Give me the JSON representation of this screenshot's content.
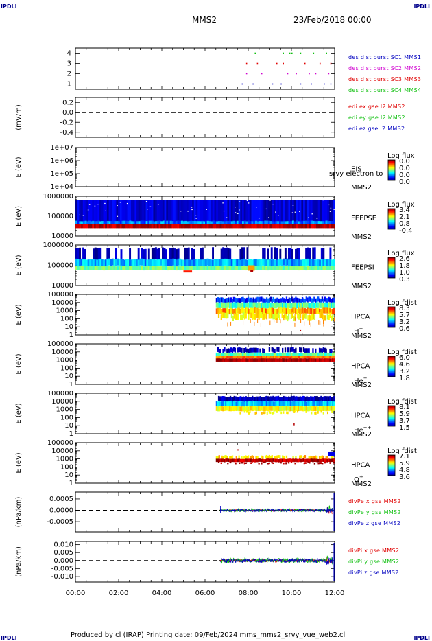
{
  "corner_label": "IPDLI",
  "header": {
    "spacecraft": "MMS2",
    "datetime": "23/Feb/2018 00:00"
  },
  "footer": {
    "text": "Produced by cl (IRAP)   Printing date: 09/Feb/2024   mms_mms2_srvy_vue_web2.cl"
  },
  "time_axis": {
    "labels": [
      "00:00",
      "02:00",
      "04:00",
      "06:00",
      "08:00",
      "10:00",
      "12:00"
    ]
  },
  "overlap_text": "srvy electron to",
  "colors": {
    "red": "#e00000",
    "green": "#10c010",
    "blue": "#0000c0",
    "magenta": "#d000d0"
  },
  "chart_data": [
    {
      "type": "scatter",
      "panel": "burst",
      "yticks": [
        "4",
        "3",
        "2",
        "1"
      ],
      "ylim": [
        0.5,
        4.5
      ],
      "legend": [
        {
          "text": "des dist burst SC1 MMS1",
          "color": "#0000c0"
        },
        {
          "text": "des dist burst SC2 MMS2",
          "color": "#d000d0"
        },
        {
          "text": "des dist burst SC3 MMS3",
          "color": "#e00000"
        },
        {
          "text": "des dist burst SC4 MMS4",
          "color": "#10c010"
        }
      ]
    },
    {
      "type": "line",
      "panel": "efield",
      "ylabel": "(mV/m)",
      "yticks": [
        "0.2",
        "0.0",
        "-0.2",
        "-0.4"
      ],
      "ylim": [
        -0.5,
        0.3
      ],
      "legend": [
        {
          "text": "edi ex gse l2 MMS2",
          "color": "#e00000"
        },
        {
          "text": "edi ey gse l2 MMS2",
          "color": "#10c010"
        },
        {
          "text": "edi ez gse l2 MMS2",
          "color": "#0000c0"
        }
      ]
    },
    {
      "type": "heatmap",
      "panel": "eis",
      "ylabel": "E (eV)",
      "yticks": [
        "1e+07",
        "1e+06",
        "1e+05",
        "1e+04"
      ],
      "scale": "log",
      "instrument": "EIS",
      "sc": "MMS2",
      "cbar_title": "Log flux",
      "cbar_ticks": [
        "0.0",
        "0.0",
        "0.0",
        "0.0"
      ]
    },
    {
      "type": "heatmap",
      "panel": "feeps-e",
      "ylabel": "E (eV)",
      "yticks": [
        "1000000",
        "100000",
        "10000"
      ],
      "scale": "log",
      "instrument": "FEEPSE",
      "sc": "MMS2",
      "cbar_title": "Log flux",
      "cbar_ticks": [
        "3.4",
        "2.1",
        "0.8",
        "-0.4"
      ]
    },
    {
      "type": "heatmap",
      "panel": "feeps-i",
      "ylabel": "E (eV)",
      "yticks": [
        "1000000",
        "100000",
        "10000"
      ],
      "scale": "log",
      "instrument": "FEEPSI",
      "sc": "MMS2",
      "cbar_title": "Log flux",
      "cbar_ticks": [
        "2.6",
        "1.8",
        "1.0",
        "0.3"
      ]
    },
    {
      "type": "heatmap",
      "panel": "hpca-h",
      "ylabel": "E (eV)",
      "yticks": [
        "100000",
        "10000",
        "1000",
        "100",
        "10",
        "1"
      ],
      "scale": "log",
      "instrument": "HPCA",
      "sc": "MMS2",
      "species_base": "H",
      "species_sup": "+",
      "cbar_title": "Log fdist",
      "cbar_ticks": [
        "8.3",
        "5.7",
        "3.2",
        "0.6"
      ]
    },
    {
      "type": "heatmap",
      "panel": "hpca-he",
      "ylabel": "E (eV)",
      "yticks": [
        "100000",
        "10000",
        "1000",
        "100",
        "10",
        "1"
      ],
      "scale": "log",
      "instrument": "HPCA",
      "sc": "MMS2",
      "species_base": "He",
      "species_sup": "+",
      "cbar_title": "Log fdist",
      "cbar_ticks": [
        "6.0",
        "4.6",
        "3.2",
        "1.8"
      ]
    },
    {
      "type": "heatmap",
      "panel": "hpca-he2",
      "ylabel": "E (eV)",
      "yticks": [
        "100000",
        "10000",
        "1000",
        "100",
        "10",
        "1"
      ],
      "scale": "log",
      "instrument": "HPCA",
      "sc": "MMS2",
      "species_base": "He",
      "species_sup": "++",
      "cbar_title": "Log fdist",
      "cbar_ticks": [
        "8.1",
        "5.9",
        "3.7",
        "1.5"
      ]
    },
    {
      "type": "heatmap",
      "panel": "hpca-o",
      "ylabel": "E (eV)",
      "yticks": [
        "100000",
        "10000",
        "1000",
        "100",
        "10",
        "1"
      ],
      "scale": "log",
      "instrument": "HPCA",
      "sc": "MMS2",
      "species_base": "O",
      "species_sup": "+",
      "cbar_title": "Log fdist",
      "cbar_ticks": [
        "7.1",
        "5.9",
        "4.8",
        "3.6"
      ]
    },
    {
      "type": "line",
      "panel": "divpe",
      "ylabel": "(nPa/km)",
      "yticks": [
        "0.0005",
        "0.0000",
        "-0.0005"
      ],
      "ylim": [
        -0.00095,
        0.0008
      ],
      "legend": [
        {
          "text": "divPe x gse MMS2",
          "color": "#e00000"
        },
        {
          "text": "divPe y gse MMS2",
          "color": "#10c010"
        },
        {
          "text": "divPe z gse MMS2",
          "color": "#0000c0"
        }
      ]
    },
    {
      "type": "line",
      "panel": "divpi",
      "ylabel": "(nPa/km)",
      "yticks": [
        "0.010",
        "0.005",
        "0.000",
        "-0.005",
        "-0.010"
      ],
      "ylim": [
        -0.0135,
        0.012
      ],
      "legend": [
        {
          "text": "divPi x gse MMS2",
          "color": "#e00000"
        },
        {
          "text": "divPi y gse MMS2",
          "color": "#10c010"
        },
        {
          "text": "divPi z gse MMS2",
          "color": "#0000c0"
        }
      ]
    }
  ]
}
